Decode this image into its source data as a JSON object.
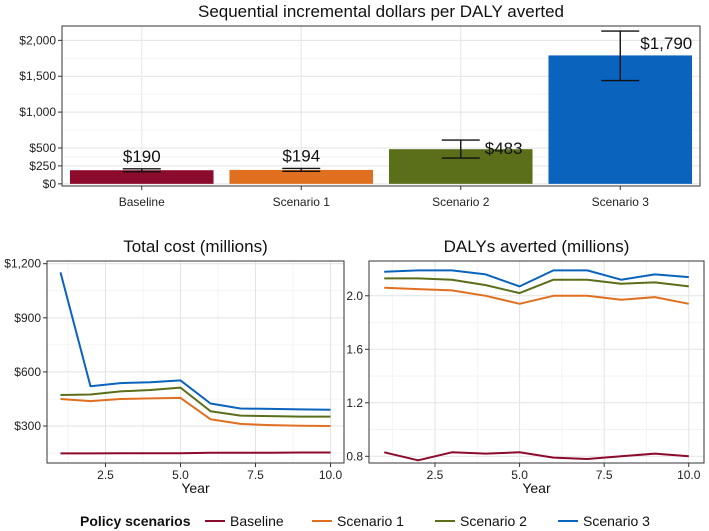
{
  "chart_data": [
    {
      "type": "bar",
      "title": "Sequential incremental dollars per DALY averted",
      "categories": [
        "Baseline",
        "Scenario 1",
        "Scenario 2",
        "Scenario 3"
      ],
      "values": [
        190,
        194,
        483,
        1790
      ],
      "value_labels": [
        "$190",
        "$194",
        "$483",
        "$1,790"
      ],
      "error_low": [
        170,
        175,
        360,
        1440
      ],
      "error_high": [
        210,
        215,
        610,
        2130
      ],
      "bar_colors": [
        "#8c0a2b",
        "#e07020",
        "#5b6f1a",
        "#0a63bd"
      ],
      "yticks": [
        0,
        250,
        500,
        1000,
        1500,
        2000
      ],
      "ytick_labels": [
        "$0",
        "$250",
        "$500",
        "$1,000",
        "$1,500",
        "$2,000"
      ],
      "ylim": [
        -30,
        2200
      ],
      "grid": true
    },
    {
      "type": "line",
      "title": "Total cost (millions)",
      "xlabel": "Year",
      "x": [
        1,
        2,
        3,
        4,
        5,
        6,
        7,
        8,
        9,
        10
      ],
      "xticks": [
        2.5,
        5.0,
        7.5,
        10.0
      ],
      "xtick_labels": [
        "2.5",
        "5.0",
        "7.5",
        "10.0"
      ],
      "xlim": [
        0.55,
        10.45
      ],
      "yticks": [
        300,
        600,
        900,
        1200
      ],
      "ytick_labels": [
        "$300",
        "$600",
        "$900",
        "$1,200"
      ],
      "ylim": [
        95,
        1215
      ],
      "grid": true,
      "series": [
        {
          "name": "Baseline",
          "color": "#8c0a2b",
          "values": [
            148,
            148,
            149,
            149,
            149,
            152,
            152,
            152,
            153,
            153
          ]
        },
        {
          "name": "Scenario 1",
          "color": "#e07020",
          "values": [
            450,
            438,
            450,
            453,
            456,
            338,
            312,
            305,
            302,
            300
          ]
        },
        {
          "name": "Scenario 2",
          "color": "#5b6f1a",
          "values": [
            472,
            475,
            492,
            500,
            513,
            382,
            358,
            355,
            352,
            352
          ]
        },
        {
          "name": "Scenario 3",
          "color": "#0a63bd",
          "values": [
            1152,
            520,
            538,
            543,
            553,
            425,
            397,
            395,
            392,
            390
          ]
        }
      ]
    },
    {
      "type": "line",
      "title": "DALYs averted (millions)",
      "xlabel": "Year",
      "x": [
        1,
        2,
        3,
        4,
        5,
        6,
        7,
        8,
        9,
        10
      ],
      "xticks": [
        2.5,
        5.0,
        7.5,
        10.0
      ],
      "xtick_labels": [
        "2.5",
        "5.0",
        "7.5",
        "10.0"
      ],
      "xlim": [
        0.55,
        10.45
      ],
      "yticks": [
        0.8,
        1.2,
        1.6,
        2.0
      ],
      "ytick_labels": [
        "0.8",
        "1.2",
        "1.6",
        "2.0"
      ],
      "ylim": [
        0.75,
        2.26
      ],
      "grid": true,
      "series": [
        {
          "name": "Baseline",
          "color": "#8c0a2b",
          "values": [
            0.83,
            0.77,
            0.83,
            0.82,
            0.83,
            0.79,
            0.78,
            0.8,
            0.82,
            0.8
          ]
        },
        {
          "name": "Scenario 1",
          "color": "#e07020",
          "values": [
            2.06,
            2.05,
            2.04,
            2.0,
            1.94,
            2.0,
            2.0,
            1.97,
            1.99,
            1.94
          ]
        },
        {
          "name": "Scenario 2",
          "color": "#5b6f1a",
          "values": [
            2.13,
            2.13,
            2.12,
            2.08,
            2.02,
            2.12,
            2.12,
            2.09,
            2.1,
            2.07
          ]
        },
        {
          "name": "Scenario 3",
          "color": "#0a63bd",
          "values": [
            2.18,
            2.19,
            2.19,
            2.16,
            2.07,
            2.19,
            2.19,
            2.12,
            2.16,
            2.14
          ]
        }
      ]
    }
  ],
  "legend": {
    "title": "Policy scenarios",
    "placement": "bottom",
    "items": [
      {
        "label": "Baseline",
        "color": "#8c0a2b"
      },
      {
        "label": "Scenario 1",
        "color": "#e07020"
      },
      {
        "label": "Scenario 2",
        "color": "#5b6f1a"
      },
      {
        "label": "Scenario 3",
        "color": "#0a63bd"
      }
    ]
  }
}
